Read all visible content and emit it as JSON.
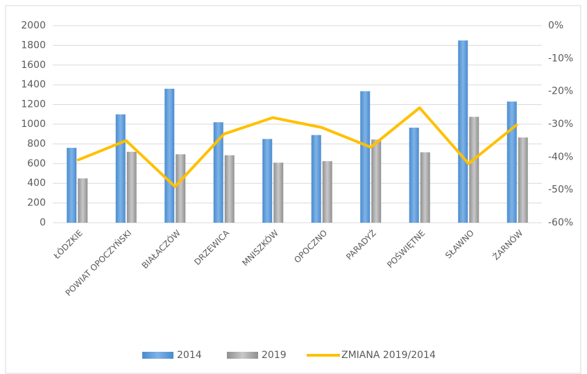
{
  "chart_data": {
    "type": "bar-line",
    "categories": [
      "ŁÓDZKIE",
      "POWIAT OPOCZYŃSKI",
      "BIAŁACZÓW",
      "DRZEWICA",
      "MNISZKÓW",
      "OPOCZNO",
      "PARADYŻ",
      "POŚWIĘTNE",
      "SŁAWNO",
      "ŻARNÓW"
    ],
    "series": [
      {
        "name": "2014",
        "type": "bar",
        "color": "#5b9bd5",
        "values": [
          760,
          1100,
          1360,
          1020,
          850,
          890,
          1335,
          965,
          1850,
          1230
        ]
      },
      {
        "name": "2019",
        "type": "bar",
        "color": "#a5a5a5",
        "values": [
          450,
          720,
          695,
          685,
          610,
          625,
          845,
          715,
          1075,
          865
        ]
      },
      {
        "name": "ZMIANA 2019/2014",
        "type": "line",
        "axis": "y2",
        "color": "#ffc000",
        "values": [
          -41,
          -35,
          -49,
          -33,
          -28,
          -31,
          -37,
          -25,
          -42,
          -30
        ]
      }
    ],
    "ylim": [
      0,
      2000
    ],
    "yticks": [
      0,
      200,
      400,
      600,
      800,
      1000,
      1200,
      1400,
      1600,
      1800,
      2000
    ],
    "y2lim": [
      -60,
      0
    ],
    "y2ticks": [
      {
        "value": -60,
        "label": "-60%"
      },
      {
        "value": -50,
        "label": "-50%"
      },
      {
        "value": -40,
        "label": "-40%"
      },
      {
        "value": -30,
        "label": "-30%"
      },
      {
        "value": -20,
        "label": "-20%"
      },
      {
        "value": -10,
        "label": "-10%"
      },
      {
        "value": 0,
        "label": "0%"
      }
    ],
    "grid": true,
    "legend": "bottom"
  }
}
